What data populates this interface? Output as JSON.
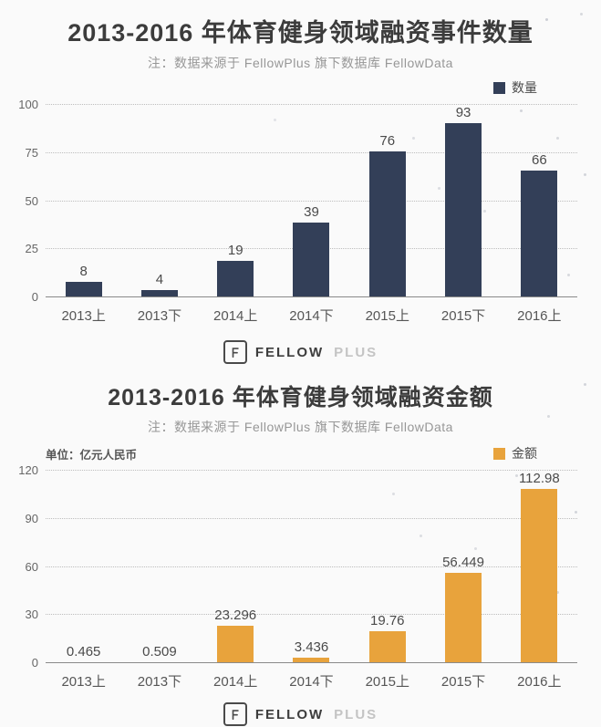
{
  "logo": {
    "text_primary": "FELLOW",
    "text_secondary": "PLUS"
  },
  "chart_data": [
    {
      "type": "bar",
      "title": "2013-2016 年体育健身领域融资事件数量",
      "note": "注：数据来源于 FellowPlus 旗下数据库 FellowData",
      "categories": [
        "2013上",
        "2013下",
        "2014上",
        "2014下",
        "2015上",
        "2015下",
        "2016上"
      ],
      "series": [
        {
          "name": "数量",
          "values": [
            8,
            4,
            19,
            39,
            76,
            93,
            66
          ]
        }
      ],
      "xlabel": "",
      "ylabel": "",
      "ylim": [
        0,
        100
      ],
      "yticks": [
        0,
        25,
        50,
        75,
        100
      ],
      "grid": "horizontal-dotted",
      "legend_position": "top-right",
      "bar_color": "#333F58"
    },
    {
      "type": "bar",
      "title": "2013-2016 年体育健身领域融资金额",
      "note": "注：数据来源于 FellowPlus 旗下数据库 FellowData",
      "unit_label": "单位：亿元人民币",
      "categories": [
        "2013上",
        "2013下",
        "2014上",
        "2014下",
        "2015上",
        "2015下",
        "2016上"
      ],
      "series": [
        {
          "name": "金额",
          "values": [
            0.465,
            0.509,
            23.296,
            3.436,
            19.76,
            56.449,
            112.98
          ]
        }
      ],
      "xlabel": "",
      "ylabel": "",
      "ylim": [
        0,
        120
      ],
      "yticks": [
        0,
        30,
        60,
        90,
        120
      ],
      "grid": "horizontal-dotted",
      "legend_position": "top-right",
      "bar_color": "#E8A33C"
    }
  ]
}
